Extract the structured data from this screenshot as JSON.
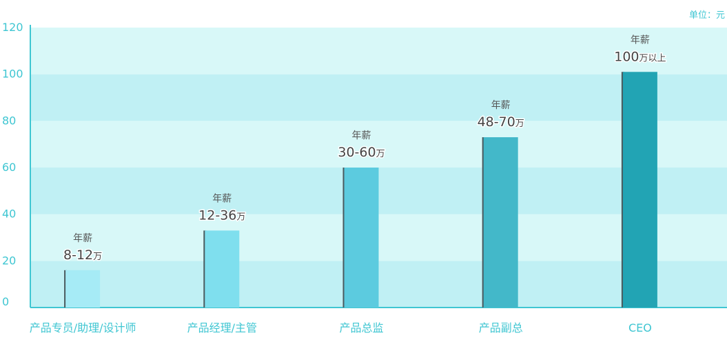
{
  "unit_label": "单位：元",
  "chart_data": {
    "type": "bar",
    "title": "",
    "xlabel": "",
    "ylabel": "",
    "ylim": [
      0,
      120
    ],
    "yticks": [
      0,
      20,
      40,
      60,
      80,
      100,
      120
    ],
    "grid": "horizontal alternating bands",
    "categories": [
      "产品专员/助理/设计师",
      "产品经理/主管",
      "产品总监",
      "产品副总",
      "CEO"
    ],
    "values": [
      16,
      33,
      60,
      73,
      101
    ],
    "labels": [
      {
        "top": "年薪",
        "value": "8-12",
        "unit": "万"
      },
      {
        "top": "年薪",
        "value": "12-36",
        "unit": "万"
      },
      {
        "top": "年薪",
        "value": "30-60",
        "unit": "万"
      },
      {
        "top": "年薪",
        "value": "48-70",
        "unit": "万"
      },
      {
        "top": "年薪",
        "value": "100",
        "unit": "万以上"
      }
    ],
    "colors": [
      "#a6ebf6",
      "#7fdfee",
      "#5ccbdf",
      "#43b8c9",
      "#22a4b4"
    ],
    "band_colors": [
      "#c0f0f4",
      "#d8f8f8"
    ],
    "axis_color": "#3fc6d2"
  }
}
